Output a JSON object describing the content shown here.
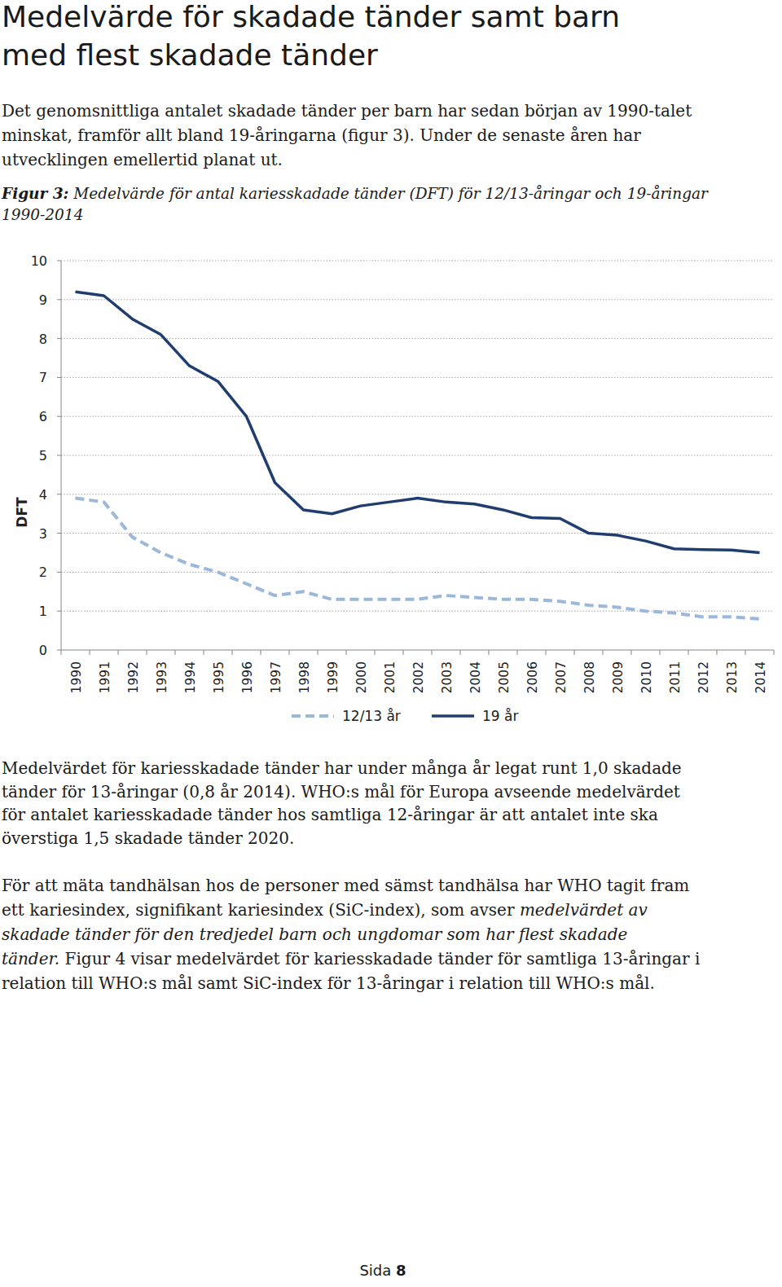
{
  "header": {
    "title_lines": [
      "Medelvärde för skadade tänder samt barn",
      "med flest skadade tänder"
    ]
  },
  "intro": [
    [
      {
        "text": "Det genomsnittliga antalet skadade tänder per barn har sedan början av 1990-talet",
        "style": "normal"
      }
    ],
    [
      {
        "text": "minskat, framför allt bland 19-åringarna (figur 3). Under de senaste åren har",
        "style": "normal"
      }
    ],
    [
      {
        "text": "utvecklingen emellertid planat ut.",
        "style": "normal"
      }
    ]
  ],
  "caption": [
    [
      {
        "text": "Figur 3:",
        "style": "bold-italic"
      },
      {
        "text": " Medelvärde för antal kariesskadade tänder (DFT) för 12/13-åringar och 19-åringar",
        "style": "italic"
      }
    ],
    [
      {
        "text": "1990-2014",
        "style": "italic"
      }
    ]
  ],
  "body": [
    [
      [
        {
          "text": "Medelvärdet för kariesskadade tänder har under många år legat runt 1,0 skadade",
          "style": "normal"
        }
      ],
      [
        {
          "text": "tänder för 13-åringar (0,8 år 2014). WHO:s mål för Europa avseende medelvärdet",
          "style": "normal"
        }
      ],
      [
        {
          "text": "för antalet kariesskadade tänder hos samtliga 12-åringar är att antalet inte ska",
          "style": "normal"
        }
      ],
      [
        {
          "text": "överstiga 1,5 skadade tänder 2020.",
          "style": "normal"
        }
      ]
    ],
    [
      [
        {
          "text": "För att mäta tandhälsan hos de personer med sämst tandhälsa har WHO tagit fram",
          "style": "normal"
        }
      ],
      [
        {
          "text": "ett kariesindex, signifikant kariesindex (SiC-index), som avser ",
          "style": "normal"
        },
        {
          "text": "medelvärdet av",
          "style": "italic"
        }
      ],
      [
        {
          "text": "skadade tänder för den tredjedel barn och ungdomar som har flest skadade",
          "style": "italic"
        }
      ],
      [
        {
          "text": "tänder.",
          "style": "italic"
        },
        {
          "text": " Figur 4 visar medelvärdet för kariesskadade tänder för samtliga 13-åringar i",
          "style": "normal"
        }
      ],
      [
        {
          "text": "relation till WHO:s mål samt SiC-index för 13-åringar i relation till WHO:s mål.",
          "style": "normal"
        }
      ]
    ]
  ],
  "footer": [
    {
      "text": "Sida ",
      "style": "normal"
    },
    {
      "text": "8",
      "style": "bold"
    }
  ],
  "chart_data": {
    "type": "line",
    "y_label": "DFT",
    "categories": [
      "1990",
      "1991",
      "1992",
      "1993",
      "1994",
      "1995",
      "1996",
      "1997",
      "1998",
      "1999",
      "2000",
      "2001",
      "2002",
      "2003",
      "2004",
      "2005",
      "2006",
      "2007",
      "2008",
      "2009",
      "2010",
      "2011",
      "2012",
      "2013",
      "2014"
    ],
    "series": [
      {
        "name": "12/13 år",
        "color": "#9bb7d9",
        "line_style": "dashed",
        "values": [
          3.9,
          3.8,
          2.9,
          2.5,
          2.2,
          2.0,
          1.7,
          1.4,
          1.5,
          1.3,
          1.3,
          1.3,
          1.3,
          1.4,
          1.35,
          1.3,
          1.3,
          1.25,
          1.15,
          1.1,
          1.0,
          0.95,
          0.85,
          0.85,
          0.8
        ]
      },
      {
        "name": "19 år",
        "color": "#1f3d6e",
        "line_style": "solid",
        "values": [
          9.2,
          9.1,
          8.5,
          8.1,
          7.3,
          6.9,
          6.0,
          4.3,
          3.6,
          3.5,
          3.7,
          3.8,
          3.9,
          3.8,
          3.75,
          3.6,
          3.4,
          3.38,
          3.0,
          2.95,
          2.8,
          2.6,
          2.58,
          2.57,
          2.5
        ]
      }
    ],
    "ylim": [
      0,
      10
    ],
    "yticks": [
      0,
      1,
      2,
      3,
      4,
      5,
      6,
      7,
      8,
      9,
      10
    ],
    "grid": true,
    "legend": "bottom"
  }
}
